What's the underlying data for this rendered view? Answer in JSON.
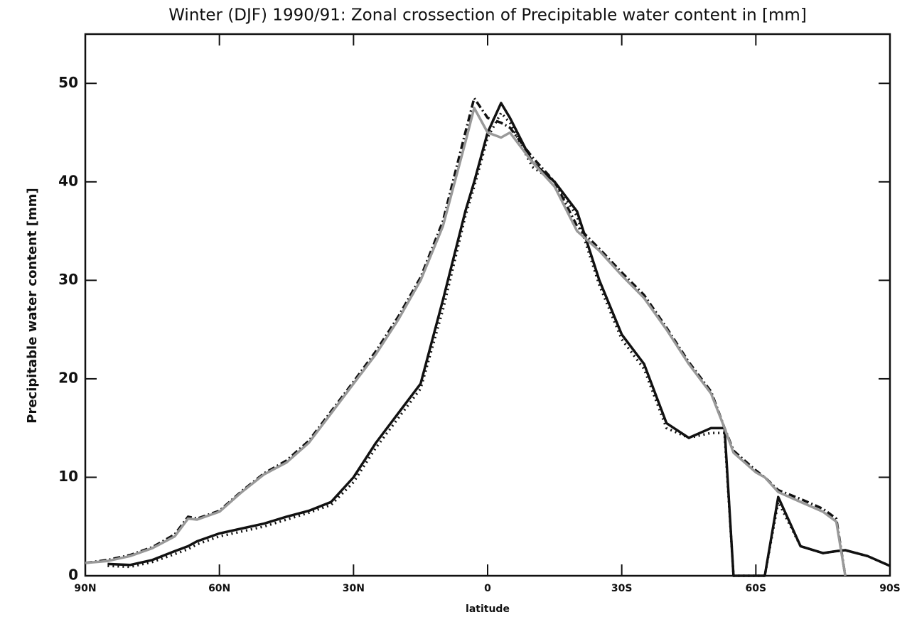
{
  "chart_data": {
    "type": "line",
    "title": "Winter (DJF) 1990/91: Zonal crossection of Precipitable water content in [mm]",
    "x_label": "latitude",
    "y_label": "Precipitable water content [mm]",
    "x": [
      90,
      85,
      80,
      75,
      70,
      67,
      65,
      60,
      55,
      50,
      45,
      40,
      35,
      30,
      25,
      20,
      15,
      10,
      5,
      3,
      0,
      -3,
      -5,
      -10,
      -15,
      -20,
      -25,
      -30,
      -35,
      -40,
      -45,
      -50,
      -53,
      -55,
      -60,
      -62,
      -65,
      -70,
      -75,
      -78,
      -80,
      -85,
      -90
    ],
    "series": [
      {
        "color": "#111111",
        "style": "solid",
        "values": [
          null,
          1.2,
          1.1,
          1.6,
          2.5,
          3.0,
          3.5,
          4.3,
          4.8,
          5.3,
          6.0,
          6.6,
          7.5,
          10.0,
          13.5,
          16.5,
          19.5,
          28.0,
          37.0,
          40.0,
          45.0,
          48.0,
          46.5,
          42.0,
          40.0,
          37.0,
          30.0,
          24.5,
          21.5,
          15.5,
          14.0,
          15.0,
          15.0,
          0,
          0,
          0,
          8.0,
          3.0,
          2.3,
          2.5,
          2.6,
          2.0,
          1.0
        ]
      },
      {
        "color": "#111111",
        "style": "dotted",
        "values": [
          null,
          1.0,
          0.9,
          1.4,
          2.2,
          2.7,
          3.2,
          4.0,
          4.5,
          5.0,
          5.7,
          6.4,
          7.2,
          9.5,
          13.0,
          16.0,
          19.0,
          27.0,
          36.5,
          39.5,
          44.5,
          47.0,
          46.0,
          41.5,
          40.0,
          36.5,
          29.5,
          24.0,
          21.0,
          15.0,
          14.0,
          14.5,
          14.5,
          0,
          0,
          0,
          7.5,
          3.0,
          2.3,
          2.5,
          2.6,
          2.0,
          1.0
        ]
      },
      {
        "color": "#111111",
        "style": "dashdot",
        "values": [
          1.3,
          1.6,
          2.1,
          2.9,
          4.2,
          6.0,
          5.8,
          6.6,
          8.6,
          10.4,
          11.7,
          13.7,
          16.7,
          19.7,
          22.8,
          26.3,
          30.3,
          36.0,
          45.0,
          48.5,
          46.5,
          46.0,
          45.5,
          42.5,
          40.0,
          35.5,
          33.2,
          30.8,
          28.5,
          25.2,
          21.7,
          18.7,
          15.0,
          12.7,
          10.7,
          10.0,
          8.7,
          7.8,
          6.8,
          5.8,
          0,
          null,
          null
        ]
      },
      {
        "color": "#999999",
        "style": "solid",
        "values": [
          1.3,
          1.5,
          2.0,
          2.8,
          4.0,
          5.8,
          5.7,
          6.5,
          8.5,
          10.3,
          11.5,
          13.5,
          16.5,
          19.5,
          22.5,
          26.0,
          30.0,
          35.5,
          44.0,
          47.5,
          45.0,
          44.5,
          45.0,
          42.0,
          39.5,
          35.0,
          33.0,
          30.5,
          28.2,
          25.0,
          21.5,
          18.5,
          15.0,
          12.5,
          10.5,
          10.0,
          8.5,
          7.5,
          6.5,
          5.5,
          0,
          null,
          null
        ]
      }
    ],
    "xlim": [
      90,
      -90
    ],
    "ylim": [
      0,
      55
    ],
    "xticks": [
      {
        "value": 90,
        "label": "90N"
      },
      {
        "value": 60,
        "label": "60N"
      },
      {
        "value": 30,
        "label": "30N"
      },
      0,
      {
        "value": -30,
        "label": "30S"
      },
      {
        "value": -60,
        "label": "60S"
      },
      {
        "value": -90,
        "label": "90S"
      }
    ],
    "yticks": [
      0,
      10,
      20,
      30,
      40,
      50
    ]
  }
}
